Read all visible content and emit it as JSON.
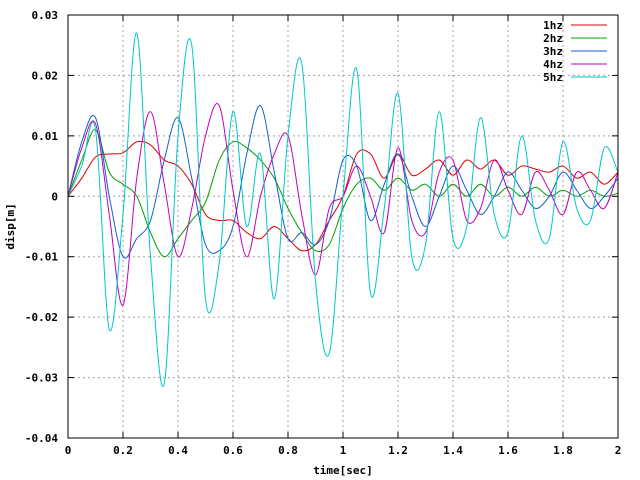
{
  "chart_data": {
    "type": "line",
    "title": "",
    "xlabel": "time[sec]",
    "ylabel": "disp[m]",
    "xlim": [
      0,
      2
    ],
    "ylim": [
      -0.04,
      0.03
    ],
    "x_ticks": [
      0,
      0.2,
      0.4,
      0.6,
      0.8,
      1,
      1.2,
      1.4,
      1.6,
      1.8,
      2
    ],
    "x_tick_labels": [
      "0",
      "0.2",
      "0.4",
      "0.6",
      "0.8",
      "1",
      "1.2",
      "1.4",
      "1.6",
      "1.8",
      "2"
    ],
    "y_ticks": [
      -0.04,
      -0.03,
      -0.02,
      -0.01,
      0,
      0.01,
      0.02,
      0.03
    ],
    "y_tick_labels": [
      "-0.04",
      "-0.03",
      "-0.02",
      "-0.01",
      "0",
      "0.01",
      "0.02",
      "0.03"
    ],
    "grid": true,
    "legend_position": "top-right",
    "series": [
      {
        "name": "1hz",
        "color": "#e00000",
        "x": [
          0,
          0.05,
          0.1,
          0.15,
          0.2,
          0.25,
          0.3,
          0.35,
          0.4,
          0.45,
          0.5,
          0.55,
          0.6,
          0.65,
          0.7,
          0.75,
          0.8,
          0.85,
          0.9,
          0.95,
          1.0,
          1.05,
          1.1,
          1.15,
          1.2,
          1.25,
          1.3,
          1.35,
          1.4,
          1.45,
          1.5,
          1.55,
          1.6,
          1.65,
          1.7,
          1.75,
          1.8,
          1.85,
          1.9,
          1.95,
          2.0
        ],
        "y": [
          0,
          0.003,
          0.0065,
          0.007,
          0.0072,
          0.009,
          0.0085,
          0.006,
          0.005,
          0.002,
          -0.003,
          -0.004,
          -0.004,
          -0.006,
          -0.007,
          -0.005,
          -0.007,
          -0.009,
          -0.008,
          -0.004,
          0.0,
          0.007,
          0.007,
          0.003,
          0.007,
          0.0035,
          0.0045,
          0.006,
          0.0035,
          0.006,
          0.0045,
          0.006,
          0.0035,
          0.005,
          0.0045,
          0.004,
          0.005,
          0.003,
          0.004,
          0.002,
          0.004
        ]
      },
      {
        "name": "2hz",
        "color": "#00a000",
        "x": [
          0,
          0.05,
          0.1,
          0.15,
          0.2,
          0.25,
          0.3,
          0.35,
          0.4,
          0.45,
          0.5,
          0.55,
          0.6,
          0.65,
          0.7,
          0.75,
          0.8,
          0.85,
          0.9,
          0.95,
          1.0,
          1.05,
          1.1,
          1.15,
          1.2,
          1.25,
          1.3,
          1.35,
          1.4,
          1.45,
          1.5,
          1.55,
          1.6,
          1.65,
          1.7,
          1.75,
          1.8,
          1.85,
          1.9,
          1.95,
          2.0
        ],
        "y": [
          0,
          0.006,
          0.011,
          0.004,
          0.002,
          0.0,
          -0.006,
          -0.01,
          -0.007,
          -0.004,
          -0.001,
          0.006,
          0.009,
          0.008,
          0.006,
          0.003,
          -0.002,
          -0.006,
          -0.009,
          -0.008,
          -0.002,
          0.002,
          0.003,
          0.001,
          0.003,
          0.001,
          0.002,
          0.0,
          0.002,
          0.0,
          0.002,
          0.0,
          0.0015,
          0.0,
          0.0015,
          0.0,
          0.001,
          0.0,
          0.001,
          0.0,
          0.0005
        ]
      },
      {
        "name": "3hz",
        "color": "#1060d0",
        "x": [
          0,
          0.05,
          0.1,
          0.15,
          0.2,
          0.25,
          0.3,
          0.35,
          0.4,
          0.45,
          0.5,
          0.55,
          0.6,
          0.65,
          0.7,
          0.75,
          0.8,
          0.85,
          0.9,
          0.95,
          1.0,
          1.05,
          1.1,
          1.15,
          1.2,
          1.25,
          1.3,
          1.35,
          1.4,
          1.45,
          1.5,
          1.55,
          1.6,
          1.65,
          1.7,
          1.75,
          1.8,
          1.85,
          1.9,
          1.95,
          2.0
        ],
        "y": [
          0,
          0.009,
          0.013,
          0.0,
          -0.01,
          -0.007,
          -0.004,
          0.006,
          0.013,
          0.003,
          -0.008,
          -0.009,
          -0.005,
          0.007,
          0.015,
          0.004,
          -0.007,
          -0.006,
          -0.008,
          -0.004,
          0.006,
          0.005,
          -0.004,
          0.002,
          0.007,
          0.0,
          -0.005,
          0.0,
          0.005,
          0.001,
          -0.003,
          0.0,
          0.004,
          0.001,
          -0.002,
          0.0,
          0.004,
          0.001,
          -0.002,
          0.0,
          0.003
        ]
      },
      {
        "name": "4hz",
        "color": "#c000c0",
        "x": [
          0,
          0.05,
          0.1,
          0.15,
          0.2,
          0.25,
          0.3,
          0.35,
          0.4,
          0.45,
          0.5,
          0.55,
          0.6,
          0.65,
          0.7,
          0.75,
          0.8,
          0.85,
          0.9,
          0.95,
          1.0,
          1.05,
          1.1,
          1.15,
          1.2,
          1.25,
          1.3,
          1.35,
          1.4,
          1.45,
          1.5,
          1.55,
          1.6,
          1.65,
          1.7,
          1.75,
          1.8,
          1.85,
          1.9,
          1.95,
          2.0
        ],
        "y": [
          0,
          0.008,
          0.012,
          -0.003,
          -0.018,
          0.003,
          0.014,
          0.002,
          -0.01,
          -0.002,
          0.01,
          0.015,
          0.001,
          -0.01,
          0.0,
          0.007,
          0.01,
          -0.003,
          -0.013,
          -0.002,
          0.0,
          0.005,
          0.0,
          -0.006,
          0.008,
          -0.004,
          -0.006,
          0.004,
          0.006,
          -0.004,
          -0.002,
          0.006,
          0.001,
          -0.003,
          0.004,
          0.001,
          -0.003,
          0.004,
          0.001,
          -0.002,
          0.004
        ]
      },
      {
        "name": "5hz",
        "color": "#00c8c8",
        "x": [
          0,
          0.05,
          0.1,
          0.15,
          0.2,
          0.25,
          0.3,
          0.35,
          0.4,
          0.45,
          0.5,
          0.55,
          0.6,
          0.65,
          0.7,
          0.75,
          0.8,
          0.85,
          0.9,
          0.95,
          1.0,
          1.05,
          1.1,
          1.15,
          1.2,
          1.25,
          1.3,
          1.35,
          1.4,
          1.45,
          1.5,
          1.55,
          1.6,
          1.65,
          1.7,
          1.75,
          1.8,
          1.85,
          1.9,
          1.95,
          2.0
        ],
        "y": [
          0,
          0.005,
          0.011,
          -0.022,
          -0.003,
          0.027,
          -0.01,
          -0.031,
          0.01,
          0.025,
          -0.017,
          -0.011,
          0.014,
          -0.005,
          0.007,
          -0.017,
          0.01,
          0.022,
          -0.014,
          -0.026,
          0.0,
          0.021,
          -0.016,
          -0.002,
          0.017,
          -0.01,
          -0.008,
          0.014,
          -0.007,
          -0.005,
          0.013,
          -0.003,
          -0.006,
          0.01,
          -0.004,
          -0.007,
          0.009,
          -0.002,
          -0.004,
          0.008,
          0.004
        ]
      }
    ]
  }
}
